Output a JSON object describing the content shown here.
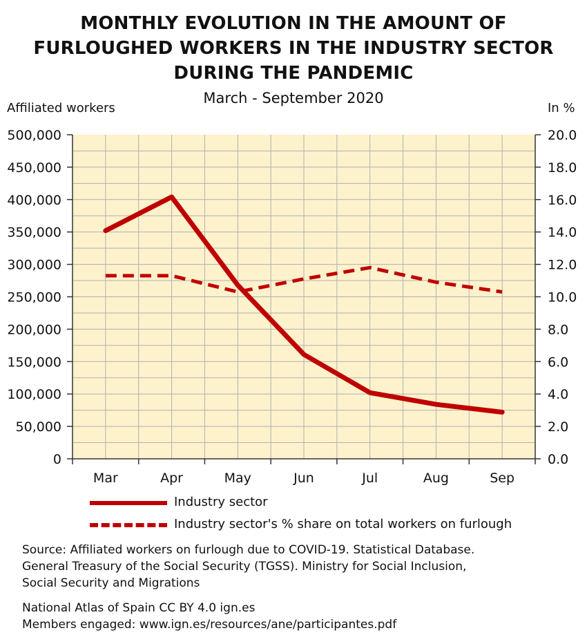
{
  "title_lines": [
    "MONTHLY EVOLUTION IN THE AMOUNT OF",
    "FURLOUGHED WORKERS IN THE INDUSTRY SECTOR",
    "DURING THE PANDEMIC"
  ],
  "subtitle": "March - September 2020",
  "left_axis_title": "Affiliated workers",
  "right_axis_title": "In %",
  "legend": {
    "series1": "Industry sector",
    "series2": "Industry sector's % share on total workers on furlough"
  },
  "source_lines": [
    "Source: Affiliated workers on furlough due to COVID-19. Statistical Database.",
    "General Treasury of the Social Security (TGSS). Ministry for Social Inclusion,",
    "Social Security and Migrations"
  ],
  "credit_lines": [
    "National Atlas of Spain CC BY 4.0 ign.es",
    "Members engaged: www.ign.es/resources/ane/participantes.pdf"
  ],
  "colors": {
    "plot_background": "#fdf2cc",
    "grid": "#b0b0b0",
    "series": "#bf0000"
  },
  "chart_data": {
    "type": "line",
    "categories": [
      "Mar",
      "Apr",
      "May",
      "Jun",
      "Jul",
      "Aug",
      "Sep"
    ],
    "left_axis": {
      "range": [
        0,
        500000
      ],
      "ticks": [
        "0",
        "50,000",
        "100,000",
        "150,000",
        "200,000",
        "250,000",
        "300,000",
        "350,000",
        "400,000",
        "450,000",
        "500,000"
      ],
      "tick_values": [
        0,
        50000,
        100000,
        150000,
        200000,
        250000,
        300000,
        350000,
        400000,
        450000,
        500000
      ]
    },
    "right_axis": {
      "range": [
        0,
        20
      ],
      "ticks": [
        "0.0",
        "2.0",
        "4.0",
        "6.0",
        "8.0",
        "10.0",
        "12.0",
        "14.0",
        "16.0",
        "18.0",
        "20.0"
      ],
      "tick_values": [
        0,
        2,
        4,
        6,
        8,
        10,
        12,
        14,
        16,
        18,
        20
      ]
    },
    "grid": true,
    "series": [
      {
        "name": "Industry sector",
        "axis": "left",
        "style": "solid",
        "values": [
          352000,
          404000,
          268000,
          161000,
          102000,
          84000,
          72000
        ]
      },
      {
        "name": "Industry sector's % share on total workers on furlough",
        "axis": "right",
        "style": "dashed",
        "values": [
          11.3,
          11.3,
          10.3,
          11.1,
          11.8,
          10.9,
          10.3
        ]
      }
    ]
  }
}
